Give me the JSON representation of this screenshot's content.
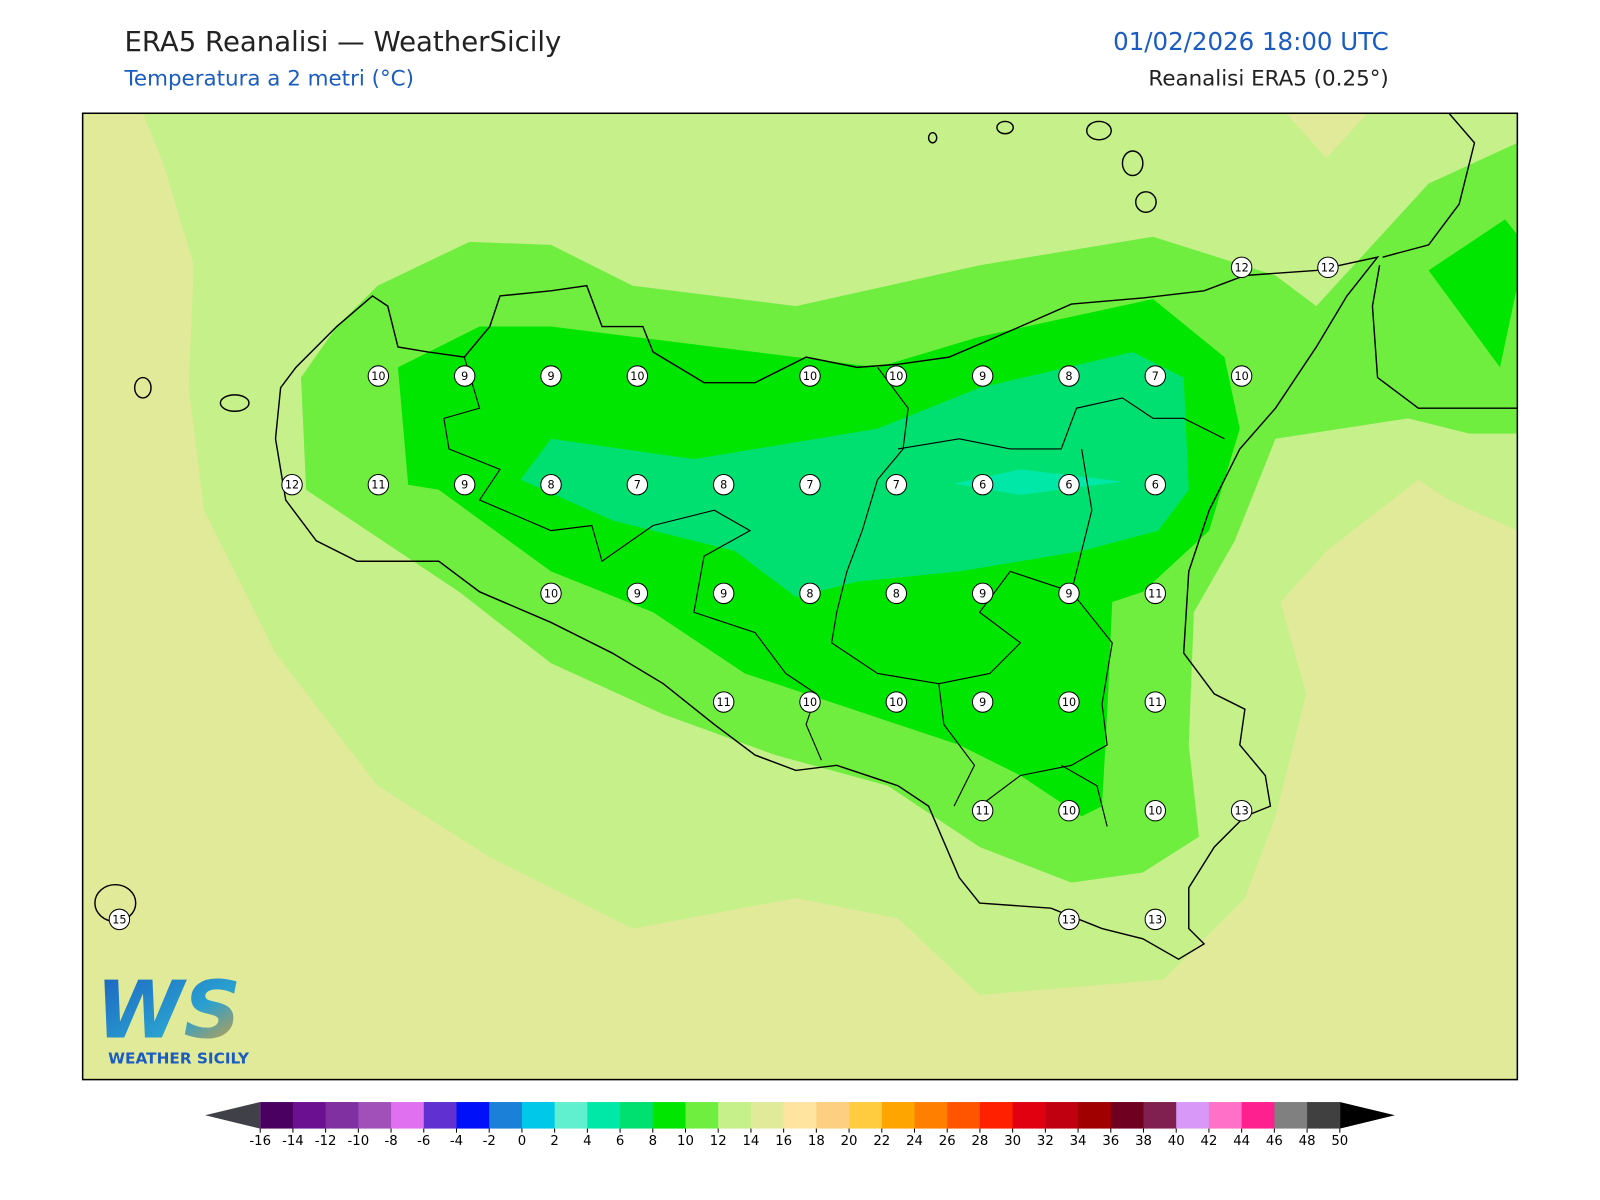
{
  "header": {
    "title": "ERA5 Reanalisi — WeatherSicily",
    "subtitle": "Temperatura a 2 metri (°C)",
    "datetime": "01/02/2026 18:00 UTC",
    "source": "Reanalisi ERA5 (0.25°)"
  },
  "stations": [
    [
      null,
      null,
      null,
      null,
      null,
      null,
      null,
      null,
      null,
      null,
      null,
      null,
      null,
      12,
      12
    ],
    [
      null,
      null,
      null,
      10,
      9,
      9,
      10,
      null,
      10,
      10,
      9,
      8,
      7,
      10,
      null
    ],
    [
      null,
      null,
      12,
      11,
      9,
      8,
      7,
      8,
      7,
      7,
      6,
      6,
      6,
      null,
      null
    ],
    [
      null,
      null,
      null,
      null,
      null,
      10,
      9,
      9,
      8,
      8,
      9,
      9,
      11,
      null,
      null
    ],
    [
      null,
      null,
      null,
      null,
      null,
      null,
      null,
      11,
      10,
      10,
      9,
      10,
      11,
      null,
      null
    ],
    [
      null,
      null,
      null,
      null,
      null,
      null,
      null,
      null,
      null,
      null,
      11,
      10,
      10,
      13,
      null
    ],
    [
      15,
      null,
      null,
      null,
      null,
      null,
      null,
      null,
      null,
      null,
      null,
      13,
      13,
      null,
      null
    ]
  ],
  "colorbar": {
    "ticks": [
      -16,
      -14,
      -12,
      -10,
      -8,
      -6,
      -4,
      -2,
      0,
      2,
      4,
      6,
      8,
      10,
      12,
      14,
      16,
      18,
      20,
      22,
      24,
      26,
      28,
      30,
      32,
      34,
      36,
      38,
      40,
      42,
      44,
      46,
      48,
      50
    ],
    "colors": [
      "#4a0060",
      "#6a1090",
      "#8030a0",
      "#a050b8",
      "#e070f0",
      "#6030d0",
      "#0010f8",
      "#1a80d8",
      "#00c8e8",
      "#60f0d0",
      "#00e8a8",
      "#00e070",
      "#00e600",
      "#70ee40",
      "#c5f08a",
      "#e0ea98",
      "#ffe4a0",
      "#fcd080",
      "#ffcc40",
      "#ffa500",
      "#ff8000",
      "#ff5500",
      "#ff2000",
      "#e00010",
      "#c00010",
      "#a00000",
      "#700020",
      "#802050",
      "#d898f8",
      "#ff70c8",
      "#ff2090",
      "#808080",
      "#404040"
    ],
    "under": "#404048",
    "over": "#000000"
  },
  "logo": {
    "mark": "WS",
    "name": "WEATHER SICILY"
  }
}
